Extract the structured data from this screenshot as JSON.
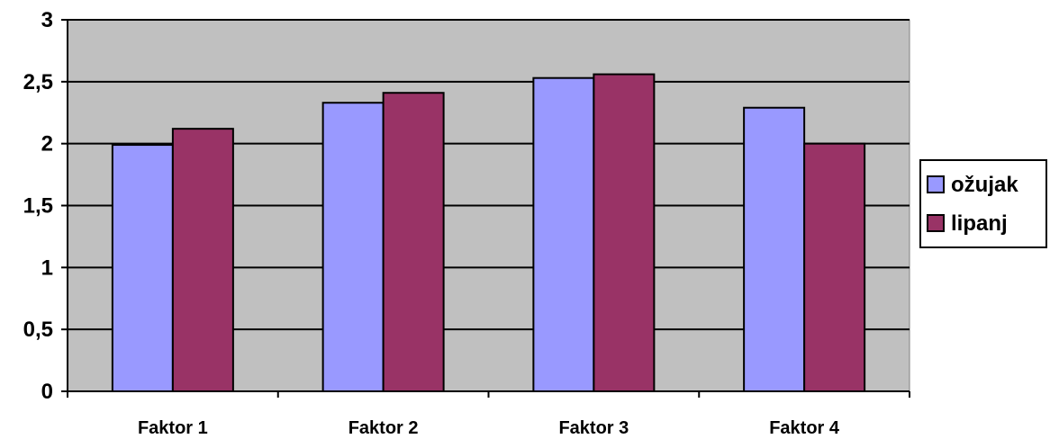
{
  "chart_data": {
    "type": "bar",
    "title": "",
    "xlabel": "",
    "ylabel": "",
    "categories": [
      "Faktor 1",
      "Faktor 2",
      "Faktor 3",
      "Faktor 4"
    ],
    "series": [
      {
        "name": "ožujak",
        "values": [
          1.99,
          2.33,
          2.53,
          2.29
        ],
        "color": "#9999ff"
      },
      {
        "name": "lipanj",
        "values": [
          2.12,
          2.41,
          2.56,
          2.0
        ],
        "color": "#993366"
      }
    ],
    "ylim": [
      0,
      3
    ],
    "yticks": [
      "0",
      "0,5",
      "1",
      "1,5",
      "2",
      "2,5",
      "3"
    ],
    "grid": true,
    "legend_position": "right",
    "plot_background": "#c0c0c0"
  }
}
